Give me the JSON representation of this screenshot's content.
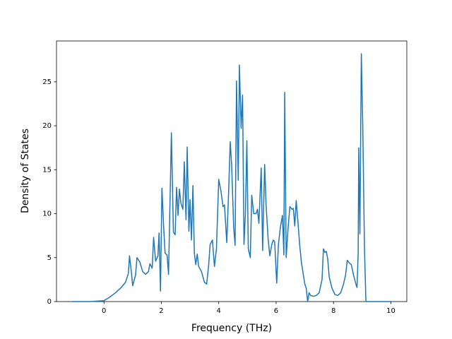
{
  "chart_data": {
    "type": "line",
    "xlabel": "Frequency (THz)",
    "ylabel": "Density of States",
    "xlim": [
      -1.655,
      10.555
    ],
    "ylim": [
      0,
      29.65
    ],
    "xticks": [
      0,
      2,
      4,
      6,
      8,
      10
    ],
    "yticks": [
      0,
      5,
      10,
      15,
      20,
      25
    ],
    "series": [
      {
        "color": "#1f77b4",
        "x": [
          -1.1,
          -0.5,
          0,
          0.2,
          0.4,
          0.6,
          0.75,
          0.85,
          0.89,
          0.95,
          1.0,
          1.1,
          1.15,
          1.25,
          1.35,
          1.45,
          1.55,
          1.6,
          1.68,
          1.73,
          1.8,
          1.88,
          1.92,
          1.97,
          2.02,
          2.08,
          2.13,
          2.2,
          2.25,
          2.35,
          2.42,
          2.48,
          2.53,
          2.58,
          2.63,
          2.68,
          2.75,
          2.8,
          2.86,
          2.9,
          2.96,
          3.0,
          3.05,
          3.1,
          3.15,
          3.2,
          3.25,
          3.3,
          3.4,
          3.5,
          3.58,
          3.65,
          3.7,
          3.78,
          3.85,
          3.92,
          4.0,
          4.08,
          4.15,
          4.2,
          4.28,
          4.35,
          4.4,
          4.45,
          4.52,
          4.57,
          4.62,
          4.68,
          4.72,
          4.78,
          4.83,
          4.88,
          4.93,
          4.98,
          5.03,
          5.1,
          5.15,
          5.22,
          5.3,
          5.35,
          5.4,
          5.48,
          5.53,
          5.6,
          5.65,
          5.72,
          5.78,
          5.85,
          5.9,
          5.95,
          6.02,
          6.08,
          6.15,
          6.22,
          6.27,
          6.3,
          6.35,
          6.42,
          6.48,
          6.55,
          6.6,
          6.65,
          6.7,
          6.75,
          6.82,
          6.88,
          6.95,
          7.0,
          7.05,
          7.1,
          7.15,
          7.2,
          7.3,
          7.4,
          7.5,
          7.6,
          7.65,
          7.7,
          7.75,
          7.8,
          7.85,
          7.95,
          8.05,
          8.15,
          8.25,
          8.35,
          8.42,
          8.48,
          8.55,
          8.62,
          8.7,
          8.78,
          8.82,
          8.86,
          8.88,
          8.92,
          8.97,
          9.02,
          9.08,
          9.13,
          10
        ],
        "values": [
          0,
          0,
          0.1,
          0.5,
          1.0,
          1.6,
          2.2,
          3.2,
          5.2,
          3.5,
          1.8,
          3.0,
          5.0,
          4.5,
          3.4,
          3.1,
          3.4,
          4.3,
          3.8,
          7.3,
          4.6,
          5.2,
          7.8,
          1.2,
          12.9,
          8.5,
          5.5,
          5.3,
          3.1,
          19.2,
          7.9,
          7.6,
          13.0,
          9.8,
          12.8,
          11.2,
          10.5,
          15.9,
          9.3,
          17.6,
          8.0,
          11.6,
          7.0,
          13.2,
          5.5,
          4.2,
          5.4,
          4.0,
          3.4,
          2.2,
          2.0,
          4.2,
          6.5,
          7.0,
          4.0,
          6.0,
          13.9,
          12.5,
          10.8,
          11.0,
          6.7,
          13.0,
          18.2,
          15.5,
          8.5,
          6.4,
          25.1,
          13.8,
          26.9,
          19.7,
          23.5,
          6.5,
          10.0,
          18.3,
          6.0,
          5.0,
          12.1,
          10.0,
          10.0,
          10.5,
          8.9,
          15.2,
          5.8,
          15.6,
          11.0,
          7.2,
          5.2,
          6.5,
          7.0,
          6.8,
          2.1,
          6.5,
          8.5,
          9.8,
          5.3,
          23.8,
          5.0,
          8.5,
          10.8,
          10.5,
          10.6,
          8.6,
          11.5,
          9.5,
          6.5,
          4.5,
          3.0,
          2.0,
          1.5,
          0,
          1.0,
          0.7,
          0.6,
          0.7,
          1.0,
          2.5,
          6.0,
          5.6,
          5.7,
          4.8,
          2.8,
          1.5,
          0.8,
          0.7,
          1.0,
          2.0,
          3.0,
          4.7,
          4.4,
          4.2,
          3.0,
          2.0,
          1.6,
          5.5,
          17.5,
          7.7,
          28.2,
          20.0,
          6.0,
          0,
          0
        ]
      }
    ]
  }
}
